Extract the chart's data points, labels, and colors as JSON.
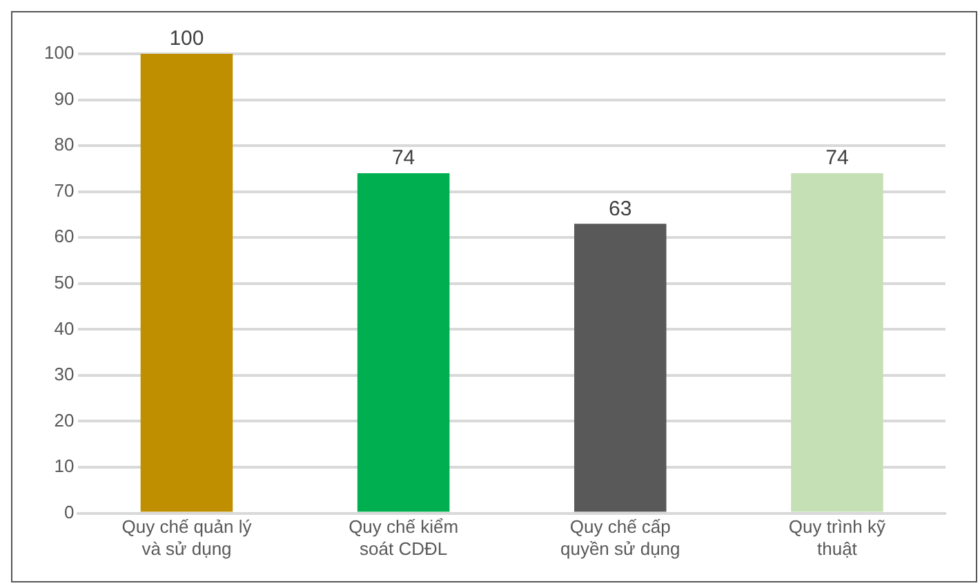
{
  "chart_data": {
    "type": "bar",
    "categories": [
      "Quy chế quản lý và sử dụng",
      "Quy chế kiểm soát CDĐL",
      "Quy chế cấp quyền sử dụng",
      "Quy trình kỹ thuật"
    ],
    "values": [
      100,
      74,
      63,
      74
    ],
    "colors": [
      "#bf8f00",
      "#00b050",
      "#595959",
      "#c5e0b4"
    ],
    "ylim": [
      0,
      100
    ],
    "yticks": [
      0,
      10,
      20,
      30,
      40,
      50,
      60,
      70,
      80,
      90,
      100
    ],
    "grid": "y",
    "data_labels": true,
    "legend": false
  }
}
